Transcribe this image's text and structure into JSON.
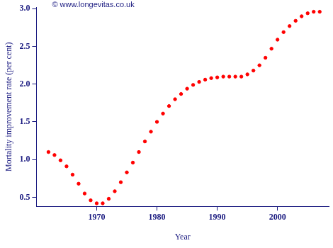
{
  "chart_data": {
    "type": "scatter",
    "annotations": [
      "© www.longevitas.co.uk"
    ],
    "x_label": "Year",
    "y_label": "Mortality improvement rate (per cent)",
    "x": [
      1962,
      1963,
      1964,
      1965,
      1966,
      1967,
      1968,
      1969,
      1970,
      1971,
      1972,
      1973,
      1974,
      1975,
      1976,
      1977,
      1978,
      1979,
      1980,
      1981,
      1982,
      1983,
      1984,
      1985,
      1986,
      1987,
      1988,
      1989,
      1990,
      1991,
      1992,
      1993,
      1994,
      1995,
      1996,
      1997,
      1998,
      1999,
      2000,
      2001,
      2002,
      2003,
      2004,
      2005,
      2006,
      2007
    ],
    "values": [
      1.1,
      1.06,
      0.99,
      0.91,
      0.8,
      0.68,
      0.55,
      0.46,
      0.42,
      0.42,
      0.48,
      0.58,
      0.7,
      0.83,
      0.96,
      1.1,
      1.24,
      1.37,
      1.5,
      1.61,
      1.71,
      1.8,
      1.87,
      1.94,
      1.99,
      2.03,
      2.06,
      2.08,
      2.09,
      2.1,
      2.1,
      2.1,
      2.1,
      2.13,
      2.18,
      2.25,
      2.35,
      2.47,
      2.59,
      2.69,
      2.77,
      2.84,
      2.9,
      2.94,
      2.96,
      2.96
    ],
    "color": "#ff0000",
    "marker": "circle",
    "xlim": [
      1960,
      2008.5
    ],
    "xticks": [
      1970,
      1980,
      1990,
      2000
    ],
    "ylim": [
      0.38,
      3.02
    ],
    "yticks": [
      0.5,
      {
        "value": 1,
        "label": "1.0"
      },
      1.5,
      {
        "value": 2,
        "label": "2.0"
      },
      2.5,
      {
        "value": 3,
        "label": "3.0"
      }
    ],
    "grid": false
  }
}
